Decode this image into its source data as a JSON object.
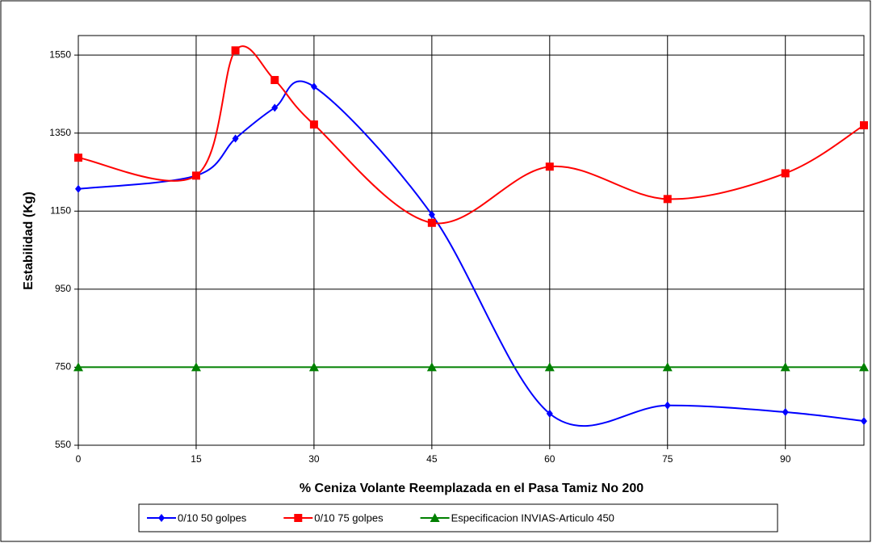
{
  "chart_data": {
    "type": "line",
    "x_label": "% Ceniza Volante Reemplazada en el Pasa Tamiz No 200",
    "y_label": "Estabilidad (Kg)",
    "xlim": [
      0,
      100
    ],
    "xticks": [
      0,
      15,
      30,
      45,
      60,
      75,
      90
    ],
    "ylim": [
      550,
      1600
    ],
    "yticks": [
      550,
      750,
      950,
      1150,
      1350,
      1550
    ],
    "grid": true,
    "smooth": true,
    "legend": "bottom",
    "series": [
      {
        "name": "0/10 50 golpes",
        "color": "#0000ff",
        "marker": "diamond",
        "x": [
          0,
          15,
          20,
          25,
          30,
          45,
          60,
          75,
          90,
          100
        ],
        "values": [
          1207,
          1241,
          1336,
          1415,
          1469,
          1141,
          631,
          652,
          635,
          612
        ]
      },
      {
        "name": "0/10 75 golpes",
        "color": "#ff0000",
        "marker": "square",
        "x": [
          0,
          15,
          20,
          25,
          30,
          45,
          60,
          75,
          90,
          100
        ],
        "values": [
          1287,
          1241,
          1562,
          1486,
          1372,
          1120,
          1264,
          1181,
          1247,
          1370
        ]
      },
      {
        "name": "Especificacion INVIAS-Articulo 450",
        "color": "#008000",
        "marker": "triangle",
        "x": [
          0,
          15,
          30,
          45,
          60,
          75,
          90,
          100
        ],
        "values": [
          750,
          750,
          750,
          750,
          750,
          750,
          750,
          750
        ]
      }
    ]
  }
}
